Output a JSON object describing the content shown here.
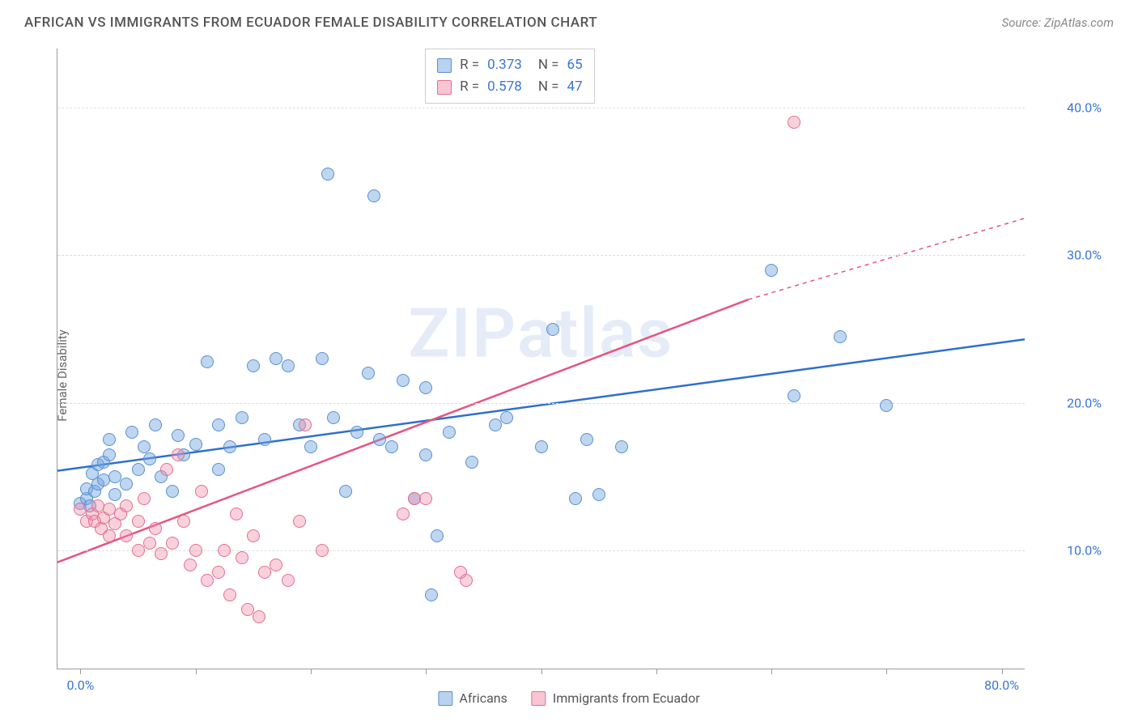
{
  "title": "AFRICAN VS IMMIGRANTS FROM ECUADOR FEMALE DISABILITY CORRELATION CHART",
  "source": "Source: ZipAtlas.com",
  "watermark": "ZIPatlas",
  "y_axis_label": "Female Disability",
  "chart": {
    "type": "scatter",
    "xlim": [
      -2,
      82
    ],
    "ylim": [
      2,
      44
    ],
    "x_ticks": [
      0,
      10,
      20,
      30,
      40,
      50,
      60,
      70,
      80
    ],
    "x_tick_labels": {
      "0": "0.0%",
      "80": "80.0%"
    },
    "y_ticks": [
      10,
      20,
      30,
      40
    ],
    "y_tick_labels": {
      "10": "10.0%",
      "20": "20.0%",
      "30": "30.0%",
      "40": "40.0%"
    },
    "grid_color": "#dddddd",
    "background_color": "#ffffff",
    "series": [
      {
        "name": "Africans",
        "color_fill": "rgba(114,165,223,0.45)",
        "color_stroke": "#5a90d0",
        "line_color": "#2e6fd0",
        "r": "0.373",
        "n": "65",
        "trend": {
          "x1": -2,
          "y1": 15.4,
          "x2": 82,
          "y2": 24.3
        },
        "points": [
          [
            0,
            13.2
          ],
          [
            0.5,
            13.5
          ],
          [
            0.5,
            14.2
          ],
          [
            0.8,
            13.0
          ],
          [
            1,
            15.2
          ],
          [
            1.2,
            14.0
          ],
          [
            1.5,
            15.8
          ],
          [
            1.5,
            14.5
          ],
          [
            2,
            16.0
          ],
          [
            2,
            14.8
          ],
          [
            2.5,
            16.5
          ],
          [
            2.5,
            17.5
          ],
          [
            3,
            15.0
          ],
          [
            3,
            13.8
          ],
          [
            4,
            14.5
          ],
          [
            4.5,
            18.0
          ],
          [
            5,
            15.5
          ],
          [
            5.5,
            17.0
          ],
          [
            6,
            16.2
          ],
          [
            6.5,
            18.5
          ],
          [
            7,
            15.0
          ],
          [
            8,
            14.0
          ],
          [
            8.5,
            17.8
          ],
          [
            9,
            16.5
          ],
          [
            10,
            17.2
          ],
          [
            11,
            22.8
          ],
          [
            12,
            18.5
          ],
          [
            13,
            17.0
          ],
          [
            14,
            19.0
          ],
          [
            15,
            22.5
          ],
          [
            16,
            17.5
          ],
          [
            17,
            23.0
          ],
          [
            18,
            22.5
          ],
          [
            19,
            18.5
          ],
          [
            20,
            17.0
          ],
          [
            21,
            23.0
          ],
          [
            21.5,
            35.5
          ],
          [
            22,
            19.0
          ],
          [
            23,
            14.0
          ],
          [
            24,
            18.0
          ],
          [
            25,
            22.0
          ],
          [
            25.5,
            34.0
          ],
          [
            26,
            17.5
          ],
          [
            27,
            17.0
          ],
          [
            28,
            21.5
          ],
          [
            29,
            13.5
          ],
          [
            30,
            16.5
          ],
          [
            30.5,
            7.0
          ],
          [
            31,
            11.0
          ],
          [
            32,
            18.0
          ],
          [
            34,
            16.0
          ],
          [
            36,
            18.5
          ],
          [
            37,
            19.0
          ],
          [
            40,
            17.0
          ],
          [
            41,
            25.0
          ],
          [
            43,
            13.5
          ],
          [
            44,
            17.5
          ],
          [
            45,
            13.8
          ],
          [
            47,
            17.0
          ],
          [
            60,
            29.0
          ],
          [
            62,
            20.5
          ],
          [
            66,
            24.5
          ],
          [
            70,
            19.8
          ],
          [
            30,
            21.0
          ],
          [
            12,
            15.5
          ]
        ]
      },
      {
        "name": "Immigrants from Ecuador",
        "color_fill": "rgba(240,140,170,0.40)",
        "color_stroke": "#e07090",
        "line_color": "#e55580",
        "r": "0.578",
        "n": "47",
        "trend": {
          "x1": -2,
          "y1": 9.2,
          "x2": 58,
          "y2": 27.0
        },
        "trend_dash": {
          "x1": 58,
          "y1": 27.0,
          "x2": 82,
          "y2": 32.5
        },
        "points": [
          [
            0,
            12.8
          ],
          [
            0.5,
            12.0
          ],
          [
            1,
            12.5
          ],
          [
            1.2,
            12.0
          ],
          [
            1.5,
            13.0
          ],
          [
            1.8,
            11.5
          ],
          [
            2,
            12.2
          ],
          [
            2.5,
            11.0
          ],
          [
            2.5,
            12.8
          ],
          [
            3,
            11.8
          ],
          [
            3.5,
            12.5
          ],
          [
            4,
            11.0
          ],
          [
            4,
            13.0
          ],
          [
            5,
            10.0
          ],
          [
            5,
            12.0
          ],
          [
            5.5,
            13.5
          ],
          [
            6,
            10.5
          ],
          [
            6.5,
            11.5
          ],
          [
            7,
            9.8
          ],
          [
            7.5,
            15.5
          ],
          [
            8,
            10.5
          ],
          [
            8.5,
            16.5
          ],
          [
            9,
            12.0
          ],
          [
            9.5,
            9.0
          ],
          [
            10,
            10.0
          ],
          [
            10.5,
            14.0
          ],
          [
            11,
            8.0
          ],
          [
            12,
            8.5
          ],
          [
            12.5,
            10.0
          ],
          [
            13,
            7.0
          ],
          [
            13.5,
            12.5
          ],
          [
            14,
            9.5
          ],
          [
            14.5,
            6.0
          ],
          [
            15,
            11.0
          ],
          [
            15.5,
            5.5
          ],
          [
            16,
            8.5
          ],
          [
            17,
            9.0
          ],
          [
            18,
            8.0
          ],
          [
            19,
            12.0
          ],
          [
            19.5,
            18.5
          ],
          [
            21,
            10.0
          ],
          [
            28,
            12.5
          ],
          [
            29,
            13.5
          ],
          [
            30,
            13.5
          ],
          [
            33,
            8.5
          ],
          [
            33.5,
            8.0
          ],
          [
            62,
            39.0
          ]
        ]
      }
    ]
  },
  "legend_bottom": [
    {
      "swatch": "s0",
      "label": "Africans"
    },
    {
      "swatch": "s1",
      "label": "Immigrants from Ecuador"
    }
  ]
}
